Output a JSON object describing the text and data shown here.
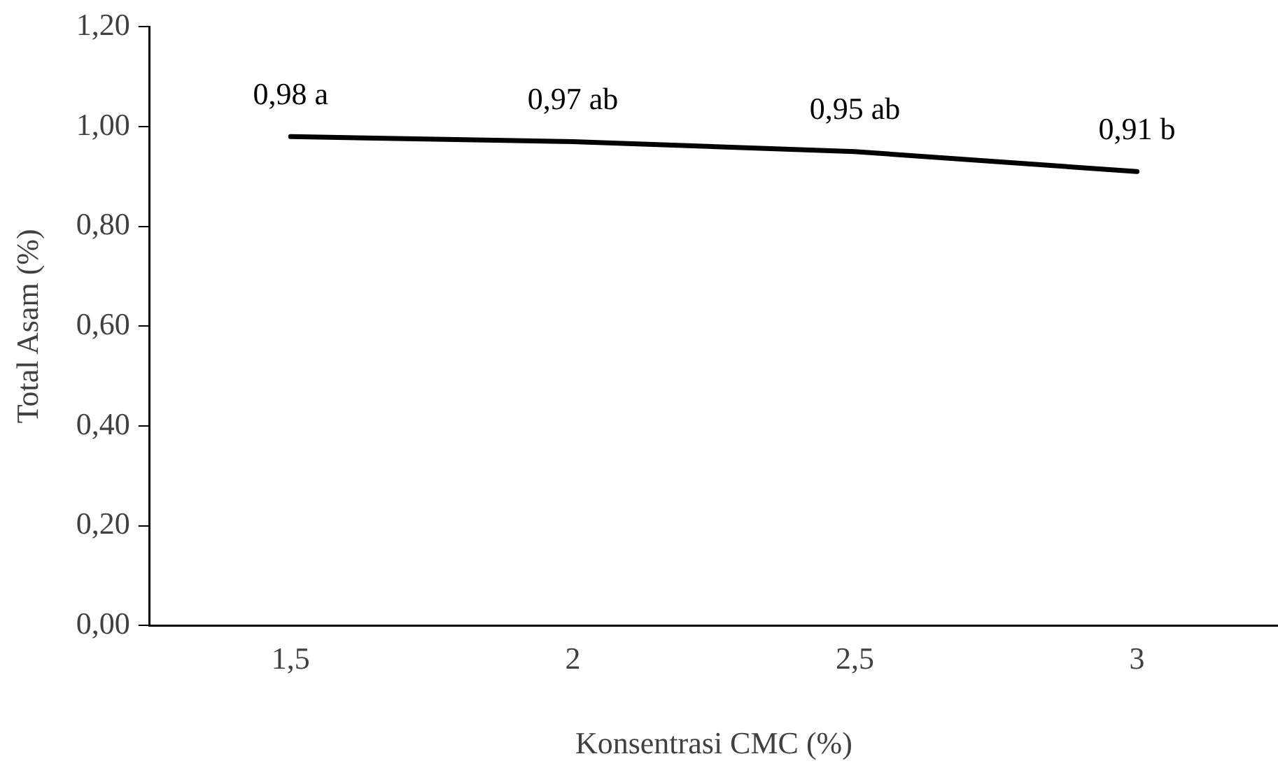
{
  "chart_data": {
    "type": "line",
    "xlabel": "Konsentrasi CMC (%)",
    "ylabel": "Total Asam (%)",
    "categories": [
      "1,5",
      "2",
      "2,5",
      "3"
    ],
    "series": [
      {
        "color": "#000000",
        "values": [
          0.98,
          0.97,
          0.95,
          0.91
        ],
        "value_labels": [
          "0,98 a",
          "0,97 ab",
          "0,95 ab",
          "0,91 b"
        ]
      }
    ],
    "ylim": [
      0,
      1.2
    ],
    "yticks": [
      {
        "value": 0,
        "label": "0,00"
      },
      {
        "value": 0.2,
        "label": "0,20"
      },
      {
        "value": 0.4,
        "label": "0,40"
      },
      {
        "value": 0.6,
        "label": "0,60"
      },
      {
        "value": 0.8,
        "label": "0,80"
      },
      {
        "value": 1.0,
        "label": "1,00"
      },
      {
        "value": 1.2,
        "label": "1,20"
      }
    ],
    "grid": false,
    "legend": false,
    "marker": "none",
    "line_style": "solid"
  }
}
